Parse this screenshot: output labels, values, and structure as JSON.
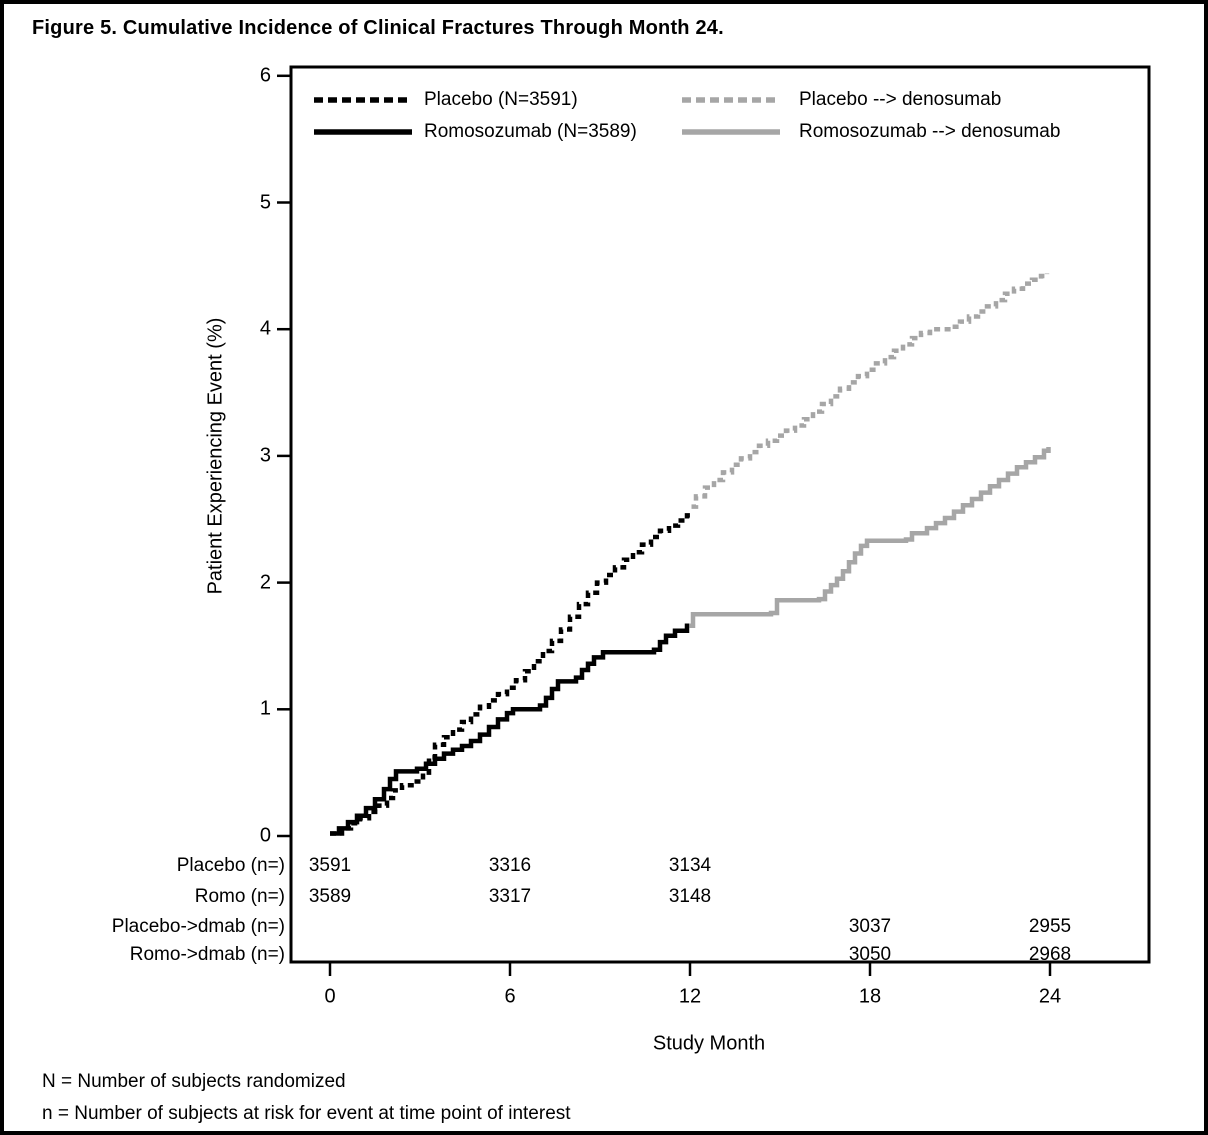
{
  "figure": {
    "title": "Figure 5. Cumulative Incidence of Clinical Fractures Through Month 24.",
    "footnotes": [
      "N = Number of subjects randomized",
      "n = Number of subjects at risk for event at time point of interest"
    ]
  },
  "chart_data": {
    "type": "line",
    "subtype": "cumulative-incidence-step",
    "title": "Figure 5. Cumulative Incidence of Clinical Fractures Through Month 24.",
    "xlabel": "Study Month",
    "ylabel": "Patient Experiencing Event (%)",
    "xlim": [
      0,
      24
    ],
    "ylim": [
      0,
      6
    ],
    "x_ticks": [
      0,
      6,
      12,
      18,
      24
    ],
    "y_ticks": [
      0,
      1,
      2,
      3,
      4,
      5,
      6
    ],
    "grid": false,
    "legend_position": "top-inside",
    "colors": {
      "black": "#000000",
      "gray": "#a6a6a6"
    },
    "series": [
      {
        "id": "placebo",
        "name": "Placebo (N=3591)",
        "color": "#000000",
        "style": "dashed",
        "points": [
          [
            0,
            0.02
          ],
          [
            0.4,
            0.06
          ],
          [
            0.7,
            0.1
          ],
          [
            1.0,
            0.14
          ],
          [
            1.3,
            0.19
          ],
          [
            1.6,
            0.24
          ],
          [
            1.9,
            0.3
          ],
          [
            2.1,
            0.36
          ],
          [
            2.4,
            0.4
          ],
          [
            2.8,
            0.43
          ],
          [
            3.1,
            0.5
          ],
          [
            3.3,
            0.62
          ],
          [
            3.5,
            0.72
          ],
          [
            3.8,
            0.78
          ],
          [
            4.1,
            0.84
          ],
          [
            4.4,
            0.9
          ],
          [
            4.7,
            0.96
          ],
          [
            5.0,
            1.02
          ],
          [
            5.3,
            1.07
          ],
          [
            5.6,
            1.12
          ],
          [
            5.9,
            1.17
          ],
          [
            6.2,
            1.23
          ],
          [
            6.5,
            1.3
          ],
          [
            6.8,
            1.38
          ],
          [
            7.1,
            1.46
          ],
          [
            7.4,
            1.54
          ],
          [
            7.7,
            1.63
          ],
          [
            8.0,
            1.73
          ],
          [
            8.3,
            1.83
          ],
          [
            8.6,
            1.92
          ],
          [
            8.9,
            2.0
          ],
          [
            9.2,
            2.06
          ],
          [
            9.5,
            2.12
          ],
          [
            9.8,
            2.18
          ],
          [
            10.1,
            2.24
          ],
          [
            10.4,
            2.3
          ],
          [
            10.7,
            2.36
          ],
          [
            11.0,
            2.41
          ],
          [
            11.3,
            2.45
          ],
          [
            11.6,
            2.49
          ],
          [
            11.9,
            2.53
          ],
          [
            12.0,
            2.55
          ]
        ]
      },
      {
        "id": "romosozumab",
        "name": "Romosozumab (N=3589)",
        "color": "#000000",
        "style": "solid",
        "points": [
          [
            0,
            0.02
          ],
          [
            0.3,
            0.06
          ],
          [
            0.6,
            0.11
          ],
          [
            0.9,
            0.16
          ],
          [
            1.2,
            0.22
          ],
          [
            1.5,
            0.29
          ],
          [
            1.8,
            0.37
          ],
          [
            2.0,
            0.45
          ],
          [
            2.2,
            0.51
          ],
          [
            2.9,
            0.53
          ],
          [
            3.2,
            0.57
          ],
          [
            3.5,
            0.61
          ],
          [
            3.8,
            0.65
          ],
          [
            4.1,
            0.68
          ],
          [
            4.4,
            0.71
          ],
          [
            4.7,
            0.75
          ],
          [
            5.0,
            0.8
          ],
          [
            5.3,
            0.86
          ],
          [
            5.6,
            0.92
          ],
          [
            5.9,
            0.97
          ],
          [
            6.1,
            1.0
          ],
          [
            7.0,
            1.03
          ],
          [
            7.2,
            1.09
          ],
          [
            7.4,
            1.16
          ],
          [
            7.6,
            1.22
          ],
          [
            8.2,
            1.25
          ],
          [
            8.4,
            1.31
          ],
          [
            8.6,
            1.36
          ],
          [
            8.8,
            1.41
          ],
          [
            9.1,
            1.45
          ],
          [
            10.8,
            1.47
          ],
          [
            11.0,
            1.53
          ],
          [
            11.2,
            1.58
          ],
          [
            11.5,
            1.62
          ],
          [
            11.9,
            1.66
          ],
          [
            12.0,
            1.66
          ]
        ]
      },
      {
        "id": "placebo-denosumab",
        "name": "Placebo --> denosumab",
        "color": "#a6a6a6",
        "style": "dashed",
        "points": [
          [
            12.05,
            2.6
          ],
          [
            12.2,
            2.68
          ],
          [
            12.5,
            2.75
          ],
          [
            12.8,
            2.81
          ],
          [
            13.1,
            2.87
          ],
          [
            13.4,
            2.93
          ],
          [
            13.7,
            2.98
          ],
          [
            14.0,
            3.03
          ],
          [
            14.3,
            3.08
          ],
          [
            14.6,
            3.12
          ],
          [
            14.9,
            3.16
          ],
          [
            15.2,
            3.2
          ],
          [
            15.5,
            3.24
          ],
          [
            15.8,
            3.29
          ],
          [
            16.1,
            3.35
          ],
          [
            16.4,
            3.41
          ],
          [
            16.7,
            3.47
          ],
          [
            17.0,
            3.53
          ],
          [
            17.3,
            3.58
          ],
          [
            17.6,
            3.63
          ],
          [
            17.9,
            3.68
          ],
          [
            18.2,
            3.73
          ],
          [
            18.5,
            3.78
          ],
          [
            18.8,
            3.83
          ],
          [
            19.1,
            3.88
          ],
          [
            19.4,
            3.93
          ],
          [
            19.7,
            3.97
          ],
          [
            20.0,
            4.0
          ],
          [
            20.7,
            4.02
          ],
          [
            21.0,
            4.06
          ],
          [
            21.3,
            4.1
          ],
          [
            21.6,
            4.14
          ],
          [
            21.9,
            4.18
          ],
          [
            22.2,
            4.23
          ],
          [
            22.5,
            4.28
          ],
          [
            22.8,
            4.32
          ],
          [
            23.1,
            4.36
          ],
          [
            23.4,
            4.39
          ],
          [
            23.7,
            4.42
          ],
          [
            23.9,
            4.44
          ]
        ]
      },
      {
        "id": "romosozumab-denosumab",
        "name": "Romosozumab --> denosumab",
        "color": "#a6a6a6",
        "style": "solid",
        "points": [
          [
            11.97,
            1.66
          ],
          [
            12.1,
            1.75
          ],
          [
            14.7,
            1.76
          ],
          [
            14.9,
            1.86
          ],
          [
            16.3,
            1.87
          ],
          [
            16.5,
            1.93
          ],
          [
            16.7,
            1.98
          ],
          [
            16.9,
            2.03
          ],
          [
            17.1,
            2.09
          ],
          [
            17.3,
            2.16
          ],
          [
            17.5,
            2.23
          ],
          [
            17.7,
            2.29
          ],
          [
            17.9,
            2.33
          ],
          [
            19.2,
            2.34
          ],
          [
            19.4,
            2.39
          ],
          [
            19.9,
            2.43
          ],
          [
            20.2,
            2.47
          ],
          [
            20.5,
            2.51
          ],
          [
            20.8,
            2.56
          ],
          [
            21.1,
            2.61
          ],
          [
            21.4,
            2.66
          ],
          [
            21.7,
            2.71
          ],
          [
            22.0,
            2.76
          ],
          [
            22.3,
            2.81
          ],
          [
            22.6,
            2.86
          ],
          [
            22.9,
            2.91
          ],
          [
            23.2,
            2.95
          ],
          [
            23.5,
            2.99
          ],
          [
            23.8,
            3.04
          ],
          [
            23.95,
            3.07
          ]
        ]
      }
    ],
    "at_risk": {
      "rows": [
        {
          "label": "Placebo (n=)",
          "values": [
            {
              "month": 0,
              "n": "3591"
            },
            {
              "month": 6,
              "n": "3316"
            },
            {
              "month": 12,
              "n": "3134"
            }
          ]
        },
        {
          "label": "Romo (n=)",
          "values": [
            {
              "month": 0,
              "n": "3589"
            },
            {
              "month": 6,
              "n": "3317"
            },
            {
              "month": 12,
              "n": "3148"
            }
          ]
        },
        {
          "label": "Placebo->dmab (n=)",
          "values": [
            {
              "month": 18,
              "n": "3037"
            },
            {
              "month": 24,
              "n": "2955"
            }
          ]
        },
        {
          "label": "Romo->dmab (n=)",
          "values": [
            {
              "month": 18,
              "n": "3050"
            },
            {
              "month": 24,
              "n": "2968"
            }
          ]
        }
      ]
    }
  }
}
